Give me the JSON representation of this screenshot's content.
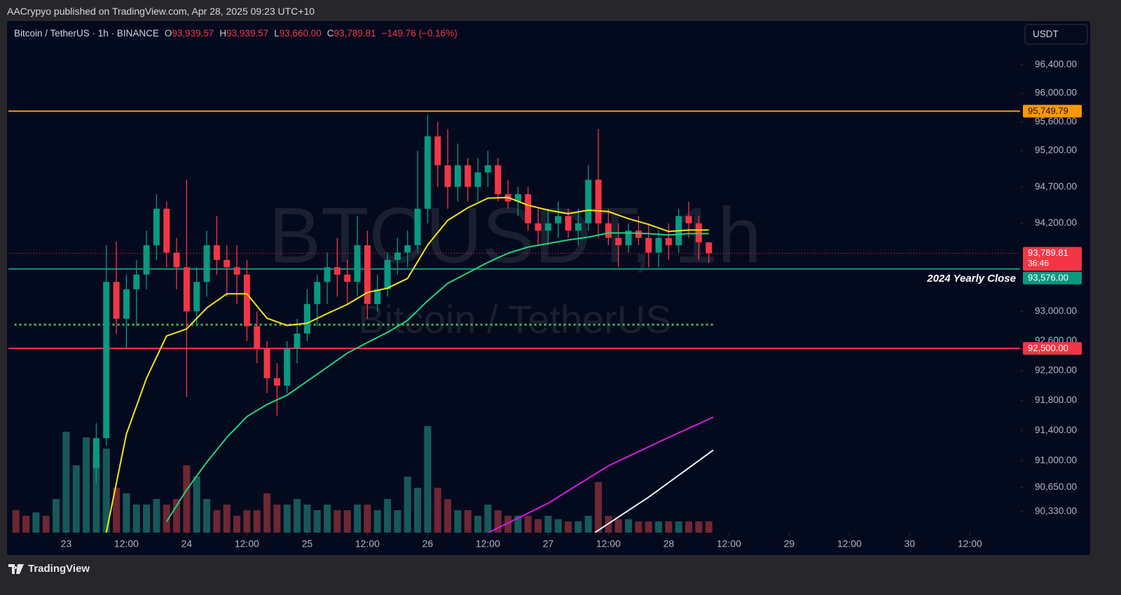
{
  "page": {
    "published": "AACrypyo published on TradingView.com, Apr 28, 2025 09:23 UTC+10",
    "brand": "TradingView",
    "currency": "USDT"
  },
  "chart_data": {
    "type": "candlestick",
    "title": "Bitcoin / TetherUS · 1h · BINANCE",
    "ohlc_legend": [
      {
        "key": "O",
        "value": "93,939.57"
      },
      {
        "key": "H",
        "value": "93,939.57"
      },
      {
        "key": "L",
        "value": "93,660.00"
      },
      {
        "key": "C",
        "value": "93,789.81"
      }
    ],
    "change": "−149.76 (−0.16%)",
    "watermark": "BTCUSDT, 1h",
    "watermark_sub": "Bitcoin / TetherUS",
    "up_color": "#089981",
    "down_color": "#f23645",
    "x": [
      6,
      8,
      10,
      12,
      14,
      16,
      18,
      20,
      22,
      24,
      26,
      28,
      30,
      32,
      34,
      36,
      38,
      40,
      42,
      44,
      46,
      48,
      50,
      52,
      54,
      56,
      58,
      60,
      62,
      64,
      66,
      68,
      70,
      72,
      74,
      76,
      78,
      80,
      82,
      84,
      86,
      88,
      90,
      92,
      94,
      96,
      98,
      100,
      102,
      104,
      106,
      108,
      110,
      112,
      114,
      116,
      118,
      120,
      122,
      124,
      126,
      128
    ],
    "open": [
      90900,
      91300,
      93400,
      92900,
      93300,
      93500,
      93900,
      94400,
      93800,
      93600,
      93000,
      93400,
      93900,
      93700,
      93600,
      93500,
      92800,
      92500,
      92100,
      92000,
      92500,
      92700,
      93100,
      93400,
      93600,
      93500,
      93400,
      93900,
      93100,
      93300,
      93700,
      93800,
      93900,
      94400,
      95400,
      95000,
      94700,
      95000,
      94700,
      94900,
      95000,
      94600,
      94500,
      94600,
      94200,
      94100,
      94200,
      94300,
      94100,
      94200,
      94800,
      94200,
      94000,
      93900,
      94100,
      94000,
      93800,
      94000,
      93900,
      94300,
      94200,
      93939.57
    ],
    "high": [
      91500,
      93900,
      93950,
      93500,
      93700,
      94100,
      94600,
      94500,
      94000,
      94800,
      93600,
      94100,
      94300,
      93900,
      93900,
      93700,
      93000,
      92600,
      92300,
      92600,
      92900,
      93300,
      93500,
      93800,
      94000,
      93700,
      94300,
      94100,
      93500,
      93800,
      94000,
      94100,
      95200,
      95700,
      95600,
      95500,
      95300,
      95100,
      95100,
      95200,
      95100,
      94800,
      94700,
      94700,
      94400,
      94400,
      94500,
      94400,
      94400,
      95000,
      95500,
      94400,
      94200,
      94200,
      94300,
      94200,
      94100,
      94200,
      94400,
      94500,
      94300,
      93939.57
    ],
    "low": [
      90700,
      91200,
      92700,
      92500,
      92800,
      93300,
      93700,
      93600,
      93300,
      91850,
      92800,
      93200,
      93500,
      93200,
      93100,
      92600,
      92300,
      91900,
      91600,
      91900,
      92300,
      92600,
      92800,
      93100,
      93200,
      93100,
      93200,
      92900,
      93000,
      93200,
      93500,
      93600,
      93800,
      94200,
      94700,
      94400,
      94500,
      94500,
      94500,
      94700,
      94500,
      94400,
      94300,
      94100,
      93900,
      93900,
      94000,
      94000,
      93900,
      94100,
      94000,
      93900,
      93600,
      93800,
      93900,
      93600,
      93600,
      93700,
      93800,
      94000,
      93700,
      93660
    ],
    "close": [
      91300,
      93400,
      92900,
      93300,
      93500,
      93900,
      94400,
      93800,
      93600,
      93000,
      93400,
      93900,
      93700,
      93600,
      93500,
      92800,
      92500,
      92100,
      92000,
      92500,
      92700,
      93100,
      93400,
      93600,
      93500,
      93400,
      93900,
      93100,
      93300,
      93700,
      93800,
      93900,
      94400,
      95400,
      95000,
      94700,
      95000,
      94700,
      94900,
      95000,
      94600,
      94500,
      94600,
      94200,
      94100,
      94200,
      94300,
      94100,
      94200,
      94800,
      94200,
      94000,
      93900,
      94100,
      94000,
      93800,
      94000,
      93900,
      94300,
      94200,
      93939.57,
      93789.81
    ],
    "xlim": [
      -11.5,
      190
    ],
    "xticks": [
      {
        "value": 0,
        "label": "23"
      },
      {
        "value": 12,
        "label": "12:00"
      },
      {
        "value": 24,
        "label": "24"
      },
      {
        "value": 36,
        "label": "12:00"
      },
      {
        "value": 48,
        "label": "25"
      },
      {
        "value": 60,
        "label": "12:00"
      },
      {
        "value": 72,
        "label": "26"
      },
      {
        "value": 84,
        "label": "12:00"
      },
      {
        "value": 96,
        "label": "27"
      },
      {
        "value": 108,
        "label": "12:00"
      },
      {
        "value": 120,
        "label": "28"
      },
      {
        "value": 132,
        "label": "12:00"
      },
      {
        "value": 144,
        "label": "29"
      },
      {
        "value": 156,
        "label": "12:00"
      },
      {
        "value": 168,
        "label": "30"
      },
      {
        "value": 180,
        "label": "12:00"
      }
    ],
    "ylim": [
      90053,
      97015
    ],
    "log": true,
    "yticks": [
      {
        "value": 96400,
        "label": "96,400.00"
      },
      {
        "value": 96000,
        "label": "96,000.00"
      },
      {
        "value": 95600,
        "label": "95,600.00"
      },
      {
        "value": 95200,
        "label": "95,200.00"
      },
      {
        "value": 94700,
        "label": "94,700.00"
      },
      {
        "value": 94200,
        "label": "94,200.00"
      },
      {
        "value": 93000,
        "label": "93,000.00"
      },
      {
        "value": 92600,
        "label": "92,600.00"
      },
      {
        "value": 92200,
        "label": "92,200.00"
      },
      {
        "value": 91800,
        "label": "91,800.00"
      },
      {
        "value": 91400,
        "label": "91,400.00"
      },
      {
        "value": 91000,
        "label": "91,000.00"
      },
      {
        "value": 90650,
        "label": "90,650.00"
      },
      {
        "value": 90330,
        "label": "90,330.00"
      }
    ],
    "volume": {
      "ylim": [
        0,
        100
      ],
      "x": [
        -10,
        -8,
        -6,
        -4,
        -2,
        0,
        2,
        4,
        6,
        8,
        10,
        12,
        14,
        16,
        18,
        20,
        22,
        24,
        26,
        28,
        30,
        32,
        34,
        36,
        38,
        40,
        42,
        44,
        46,
        48,
        50,
        52,
        54,
        56,
        58,
        60,
        62,
        64,
        66,
        68,
        70,
        72,
        74,
        76,
        78,
        80,
        82,
        84,
        86,
        88,
        90,
        92,
        94,
        96,
        98,
        100,
        102,
        104,
        106,
        108,
        110,
        112,
        114,
        116,
        118,
        120,
        122,
        124,
        126,
        128
      ],
      "values": [
        20,
        15,
        18,
        15,
        30,
        90,
        60,
        85,
        70,
        75,
        40,
        35,
        25,
        25,
        30,
        25,
        30,
        60,
        50,
        30,
        20,
        25,
        15,
        20,
        20,
        35,
        25,
        25,
        30,
        25,
        20,
        25,
        20,
        20,
        25,
        25,
        20,
        30,
        20,
        50,
        40,
        95,
        40,
        30,
        20,
        20,
        15,
        25,
        20,
        15,
        15,
        15,
        12,
        15,
        12,
        10,
        10,
        15,
        45,
        15,
        12,
        12,
        10,
        10,
        10,
        10,
        10,
        10,
        10,
        10
      ],
      "colors": [
        "#6e2733",
        "#6e2733",
        "#17595a",
        "#6e2733",
        "#17595a",
        "#17595a",
        "#17595a",
        "#17595a",
        "#17595a",
        "#17595a",
        "#6e2733",
        "#17595a",
        "#17595a",
        "#17595a",
        "#17595a",
        "#6e2733",
        "#6e2733",
        "#6e2733",
        "#17595a",
        "#17595a",
        "#6e2733",
        "#6e2733",
        "#6e2733",
        "#6e2733",
        "#6e2733",
        "#6e2733",
        "#6e2733",
        "#17595a",
        "#17595a",
        "#17595a",
        "#17595a",
        "#17595a",
        "#6e2733",
        "#6e2733",
        "#17595a",
        "#6e2733",
        "#17595a",
        "#17595a",
        "#17595a",
        "#17595a",
        "#17595a",
        "#17595a",
        "#6e2733",
        "#6e2733",
        "#17595a",
        "#6e2733",
        "#17595a",
        "#17595a",
        "#6e2733",
        "#6e2733",
        "#17595a",
        "#6e2733",
        "#6e2733",
        "#17595a",
        "#17595a",
        "#6e2733",
        "#17595a",
        "#17595a",
        "#6e2733",
        "#6e2733",
        "#6e2733",
        "#17595a",
        "#6e2733",
        "#6e2733",
        "#17595a",
        "#6e2733",
        "#17595a",
        "#6e2733",
        "#6e2733",
        "#6e2733"
      ]
    },
    "series": [
      {
        "color": "#f5e50f",
        "x": [
          8,
          12,
          16,
          20,
          24,
          28,
          32,
          36,
          40,
          44,
          48,
          52,
          56,
          60,
          64,
          68,
          72,
          76,
          80,
          84,
          88,
          92,
          96,
          100,
          104,
          108,
          112,
          116,
          120,
          124,
          128
        ],
        "values": [
          90053,
          91354,
          92100,
          92668,
          92763,
          93047,
          93239,
          93239,
          92907,
          92811,
          92839,
          92971,
          93094,
          93257,
          93315,
          93447,
          93904,
          94241,
          94413,
          94546,
          94556,
          94449,
          94380,
          94332,
          94380,
          94361,
          94263,
          94185,
          94088,
          94107,
          94107
        ]
      },
      {
        "color": "#22d47e",
        "x": [
          20,
          24,
          28,
          32,
          36,
          40,
          44,
          48,
          52,
          56,
          60,
          64,
          68,
          72,
          76,
          80,
          84,
          88,
          92,
          96,
          100,
          104,
          108,
          112,
          116,
          120,
          124,
          128
        ],
        "values": [
          90196,
          90616,
          90981,
          91309,
          91587,
          91749,
          91872,
          92060,
          92248,
          92438,
          92579,
          92716,
          92879,
          93144,
          93381,
          93523,
          93667,
          93790,
          93875,
          93923,
          93972,
          94010,
          94068,
          94068,
          94058,
          94039,
          94058,
          94058
        ]
      },
      {
        "color": "#d61be0",
        "x": [
          84.1,
          96,
          108,
          120,
          128.9
        ],
        "values": [
          90053,
          90440,
          90934,
          91310,
          91580
        ]
      },
      {
        "color": "#f2f2f2",
        "x": [
          105.3,
          116,
          128.9
        ],
        "values": [
          90053,
          90519,
          91142
        ]
      }
    ],
    "levels": [
      {
        "value": 95749.79,
        "label": "95,749.79",
        "color": "#ff9800"
      },
      {
        "value": 93576,
        "label": "93,576.00",
        "color": "#089981",
        "text": "2024 Yearly Close"
      },
      {
        "value": 92500,
        "label": "92,500.00",
        "color": "#f23645"
      }
    ],
    "dotted_level": {
      "value": 92821,
      "color": "#4caf50",
      "x": [
        -10.3,
        128.9
      ]
    },
    "last": {
      "value": 93789.81,
      "label": "93,789.81",
      "countdown": "36:46",
      "color": "#f23645"
    }
  }
}
